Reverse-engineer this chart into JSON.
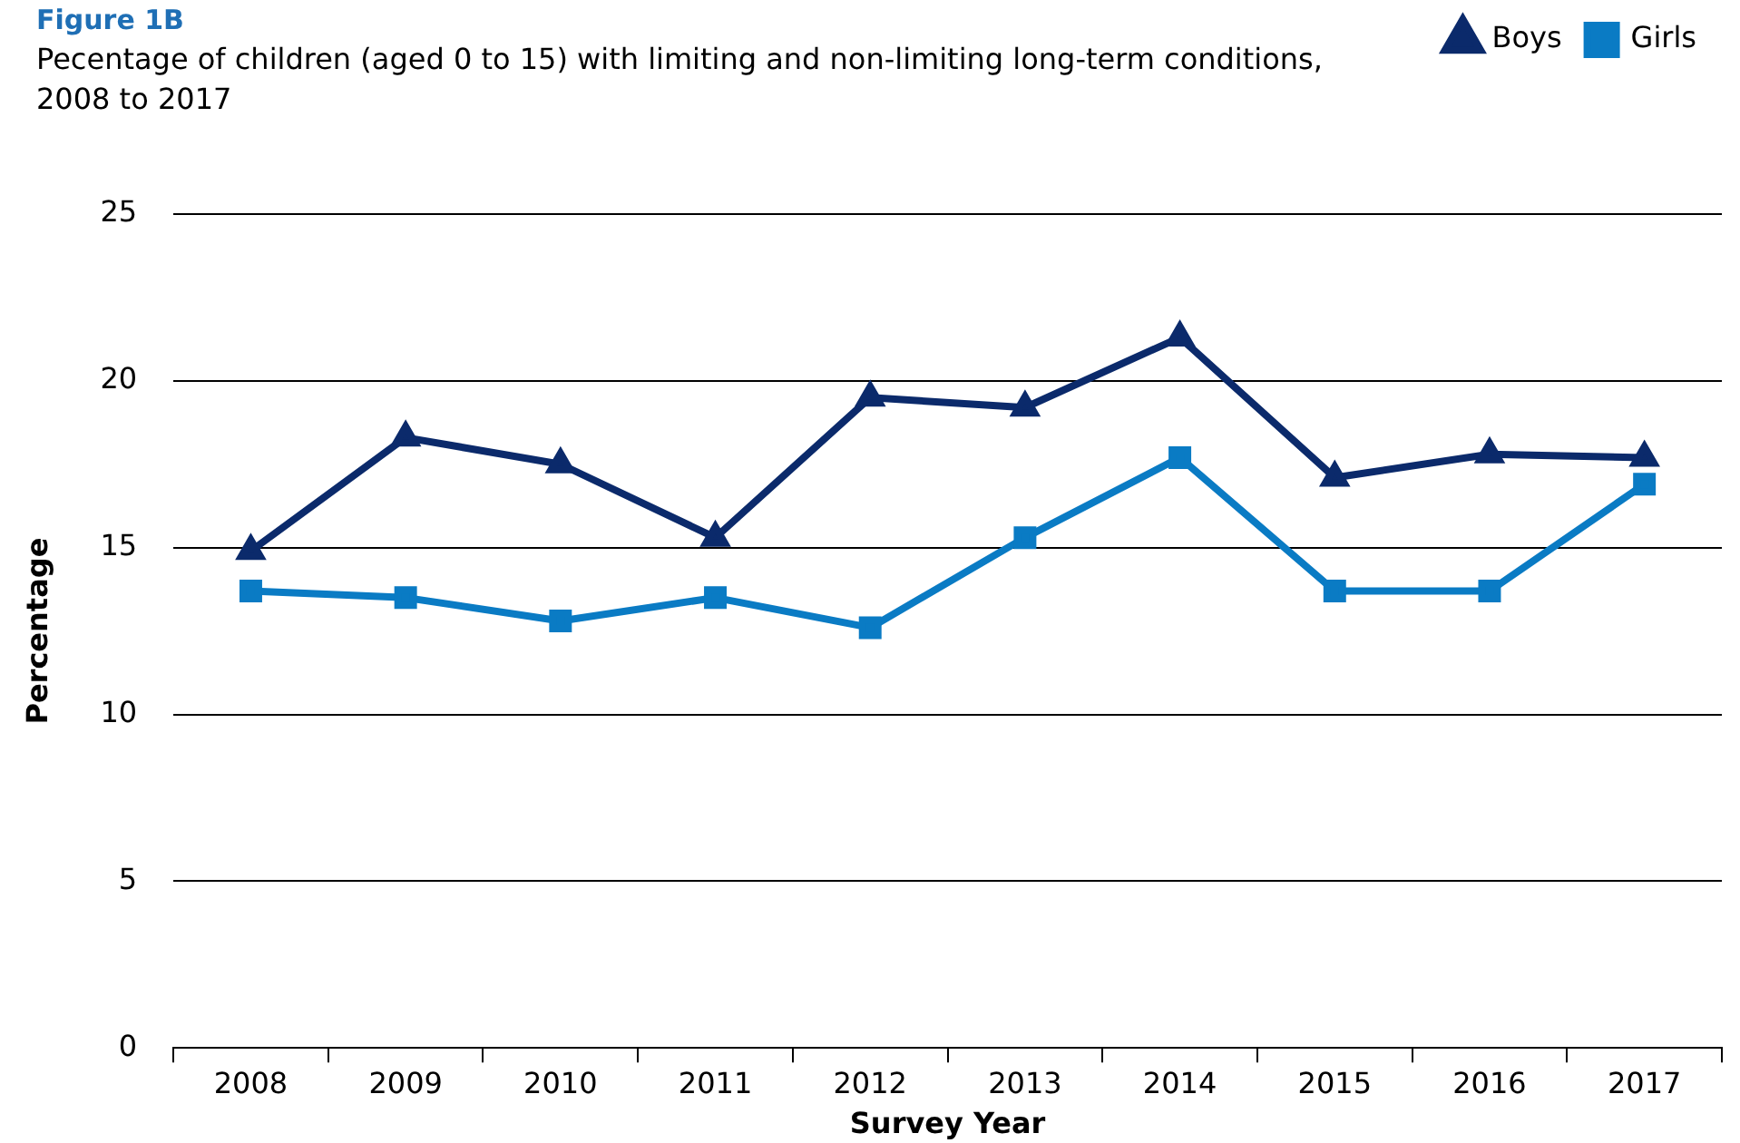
{
  "chart_data": {
    "type": "line",
    "title": "Figure 1B",
    "subtitle": "Pecentage of children (aged 0 to 15) with limiting and non-limiting long-term conditions, 2008 to 2017",
    "xlabel": "Survey Year",
    "ylabel": "Percentage",
    "categories": [
      "2008",
      "2009",
      "2010",
      "2011",
      "2012",
      "2013",
      "2014",
      "2015",
      "2016",
      "2017"
    ],
    "series": [
      {
        "name": "Boys",
        "color": "#0b2a6b",
        "marker": "triangle",
        "values": [
          14.9,
          18.3,
          17.5,
          15.3,
          19.5,
          19.2,
          21.3,
          17.1,
          17.8,
          17.7
        ]
      },
      {
        "name": "Girls",
        "color": "#0a7bc4",
        "marker": "square",
        "values": [
          13.7,
          13.5,
          12.8,
          13.5,
          12.6,
          15.3,
          17.7,
          13.7,
          13.7,
          16.9
        ]
      }
    ],
    "ylim": [
      0,
      25
    ],
    "yticks": [
      0,
      5,
      10,
      15,
      20,
      25
    ],
    "grid": "y",
    "legend": "top right",
    "line_style": "solid"
  }
}
